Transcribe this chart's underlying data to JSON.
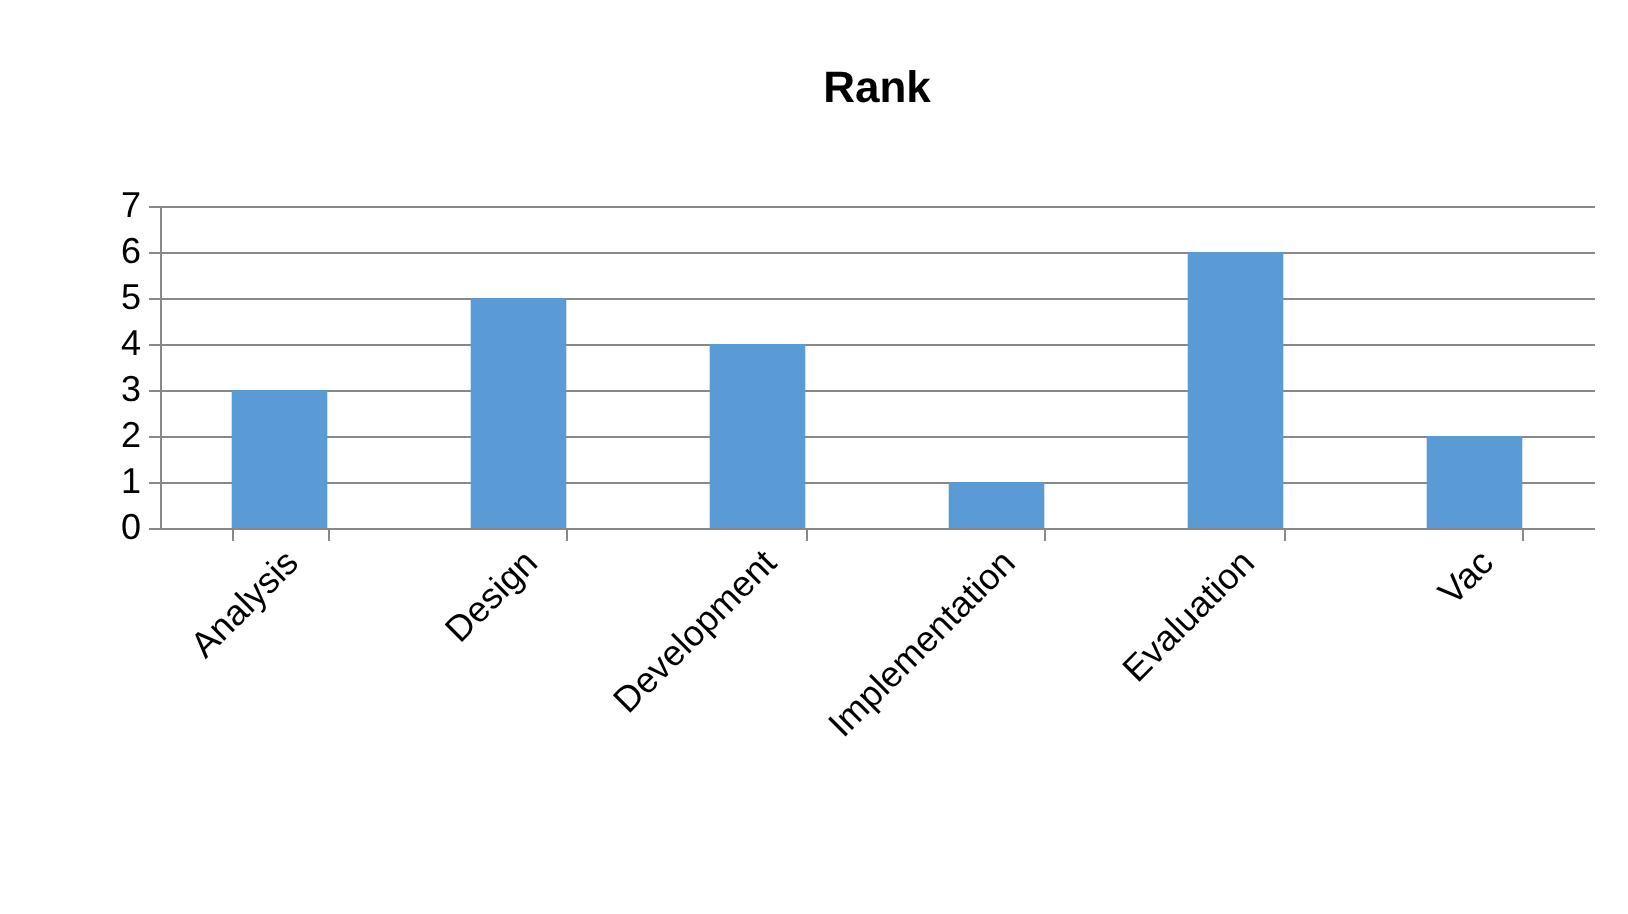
{
  "chart_data": {
    "type": "bar",
    "title": "Rank",
    "categories": [
      "Analysis",
      "Design",
      "Development",
      "Implementation",
      "Evaluation",
      "Vac"
    ],
    "values": [
      3,
      5,
      4,
      1,
      6,
      2
    ],
    "color": "#5b9bd5",
    "ylim": [
      0,
      7
    ],
    "yticks": [
      0,
      1,
      2,
      3,
      4,
      5,
      6,
      7
    ],
    "grid": "y"
  }
}
